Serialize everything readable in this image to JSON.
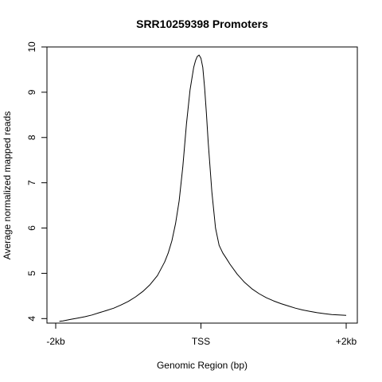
{
  "chart_data": {
    "type": "line",
    "title": "SRR10259398 Promoters",
    "xlabel": "Genomic Region (bp)",
    "ylabel": "Average normalized mapped reads",
    "x_tick_labels": [
      "-2kb",
      "TSS",
      "+2kb"
    ],
    "x_tick_values": [
      -2000,
      0,
      2000
    ],
    "y_ticks": [
      4,
      5,
      6,
      7,
      8,
      9,
      10
    ],
    "xlim": [
      -2000,
      2000
    ],
    "ylim": [
      3.9,
      10.0
    ],
    "grid": false,
    "legend": "none",
    "line_color": "#000000",
    "series": [
      {
        "x": [
          -1950,
          -1900,
          -1800,
          -1700,
          -1600,
          -1500,
          -1400,
          -1300,
          -1200,
          -1100,
          -1000,
          -900,
          -800,
          -700,
          -600,
          -500,
          -450,
          -400,
          -350,
          -300,
          -250,
          -200,
          -150,
          -100,
          -75,
          -50,
          -25,
          0,
          25,
          50,
          75,
          100,
          150,
          200,
          250,
          300,
          350,
          400,
          500,
          600,
          700,
          800,
          900,
          1000,
          1100,
          1200,
          1300,
          1400,
          1500,
          1600,
          1700,
          1800,
          1900,
          2000
        ],
        "values": [
          3.94,
          3.95,
          3.98,
          4.01,
          4.04,
          4.08,
          4.13,
          4.18,
          4.23,
          4.3,
          4.38,
          4.48,
          4.6,
          4.75,
          4.95,
          5.25,
          5.45,
          5.72,
          6.1,
          6.6,
          7.35,
          8.3,
          9.05,
          9.55,
          9.7,
          9.79,
          9.82,
          9.75,
          9.55,
          9.1,
          8.55,
          7.9,
          6.8,
          6.0,
          5.62,
          5.45,
          5.33,
          5.2,
          4.98,
          4.8,
          4.66,
          4.55,
          4.46,
          4.39,
          4.33,
          4.28,
          4.23,
          4.19,
          4.16,
          4.13,
          4.11,
          4.09,
          4.08,
          4.07
        ]
      }
    ]
  }
}
